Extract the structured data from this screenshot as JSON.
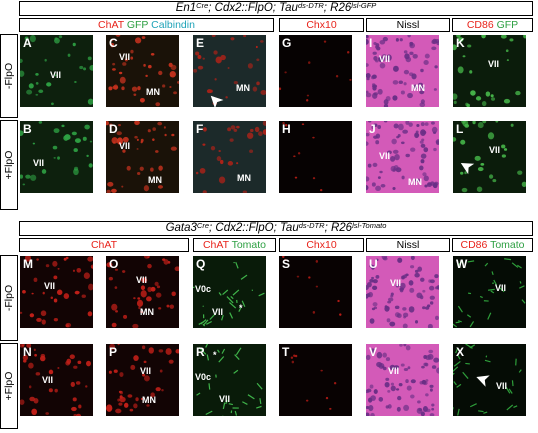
{
  "top": {
    "genotype": {
      "parts": [
        {
          "t": "En1",
          "sup": "Cre"
        },
        {
          "t": "; Cdx2::FlpO; Tau",
          "sup": "ds-DTR"
        },
        {
          "t": "; R26",
          "sup": "lsl-GFP"
        }
      ]
    },
    "headers": [
      [
        {
          "t": "ChAT",
          "c": "red"
        },
        {
          "t": " GFP",
          "c": "green"
        },
        {
          "t": " Calbindin",
          "c": "cyan"
        }
      ],
      [
        {
          "t": "Chx10",
          "c": "red"
        }
      ],
      [
        {
          "t": "Nissl",
          "c": "blk"
        }
      ],
      [
        {
          "t": "CD86",
          "c": "red"
        },
        {
          "t": " GFP",
          "c": "green"
        }
      ]
    ],
    "rows": [
      {
        "label": "-FlpO",
        "panels": [
          {
            "letter": "A",
            "labels": [
              {
                "text": "VII",
                "x": 30,
                "y": 35
              }
            ]
          },
          {
            "letter": "C",
            "labels": [
              {
                "text": "VII",
                "x": 13,
                "y": 17
              },
              {
                "text": "MN",
                "x": 40,
                "y": 52
              }
            ]
          },
          {
            "letter": "E",
            "labels": [
              {
                "text": "MN",
                "x": 43,
                "y": 48
              }
            ]
          },
          {
            "letter": "G",
            "labels": []
          },
          {
            "letter": "I",
            "labels": [
              {
                "text": "VII",
                "x": 13,
                "y": 19
              },
              {
                "text": "MN",
                "x": 45,
                "y": 48
              }
            ]
          },
          {
            "letter": "K",
            "labels": [
              {
                "text": "VII",
                "x": 35,
                "y": 24
              }
            ]
          }
        ]
      },
      {
        "label": "+FlpO",
        "panels": [
          {
            "letter": "B",
            "labels": [
              {
                "text": "VII",
                "x": 13,
                "y": 37
              }
            ]
          },
          {
            "letter": "D",
            "labels": [
              {
                "text": "VII",
                "x": 13,
                "y": 20
              },
              {
                "text": "MN",
                "x": 42,
                "y": 54
              }
            ]
          },
          {
            "letter": "F",
            "labels": [
              {
                "text": "MN",
                "x": 44,
                "y": 52
              }
            ]
          },
          {
            "letter": "H",
            "labels": []
          },
          {
            "letter": "J",
            "labels": [
              {
                "text": "VII",
                "x": 13,
                "y": 30
              },
              {
                "text": "MN",
                "x": 42,
                "y": 56
              }
            ]
          },
          {
            "letter": "L",
            "labels": [
              {
                "text": "VII",
                "x": 36,
                "y": 24
              }
            ]
          }
        ]
      }
    ]
  },
  "bottom": {
    "genotype": {
      "parts": [
        {
          "t": "Gata3",
          "sup": "Cre"
        },
        {
          "t": "; Cdx2::FlpO; Tau",
          "sup": "ds-DTR"
        },
        {
          "t": "; R26",
          "sup": "lsl-Tomato"
        }
      ]
    },
    "headers": [
      [
        {
          "t": "ChAT",
          "c": "red"
        }
      ],
      [
        {
          "t": "ChAT",
          "c": "red"
        },
        {
          "t": " Tomato",
          "c": "green"
        }
      ],
      [
        {
          "t": "Chx10",
          "c": "red"
        }
      ],
      [
        {
          "t": "Nissl",
          "c": "blk"
        }
      ],
      [
        {
          "t": "CD86",
          "c": "red"
        },
        {
          "t": " Tomato",
          "c": "green"
        }
      ]
    ],
    "rows": [
      {
        "label": "-FlpO",
        "panels": [
          {
            "letter": "M",
            "labels": [
              {
                "text": "VII",
                "x": 24,
                "y": 25
              }
            ]
          },
          {
            "letter": "O",
            "labels": [
              {
                "text": "VII",
                "x": 30,
                "y": 19
              },
              {
                "text": "MN",
                "x": 34,
                "y": 51
              }
            ]
          },
          {
            "letter": "Q",
            "labels": [
              {
                "text": "V0c",
                "x": 2,
                "y": 28
              },
              {
                "text": "VII",
                "x": 19,
                "y": 51
              },
              {
                "text": "*",
                "x": 46,
                "y": 47
              }
            ]
          },
          {
            "letter": "S",
            "labels": []
          },
          {
            "letter": "U",
            "labels": [
              {
                "text": "VII",
                "x": 24,
                "y": 22
              }
            ]
          },
          {
            "letter": "W",
            "labels": [
              {
                "text": "VII",
                "x": 42,
                "y": 27
              }
            ]
          }
        ]
      },
      {
        "label": "+FlpO",
        "panels": [
          {
            "letter": "N",
            "labels": [
              {
                "text": "VII",
                "x": 22,
                "y": 31
              }
            ]
          },
          {
            "letter": "P",
            "labels": [
              {
                "text": "VII",
                "x": 34,
                "y": 22
              },
              {
                "text": "MN",
                "x": 36,
                "y": 51
              }
            ]
          },
          {
            "letter": "R",
            "labels": [
              {
                "text": "*",
                "x": 20,
                "y": 6
              },
              {
                "text": "V0c",
                "x": 2,
                "y": 28
              },
              {
                "text": "VII",
                "x": 26,
                "y": 50
              }
            ]
          },
          {
            "letter": "T",
            "labels": []
          },
          {
            "letter": "V",
            "labels": [
              {
                "text": "VII",
                "x": 22,
                "y": 22
              }
            ]
          },
          {
            "letter": "X",
            "labels": [
              {
                "text": "VII",
                "x": 43,
                "y": 37
              }
            ]
          }
        ]
      }
    ]
  }
}
